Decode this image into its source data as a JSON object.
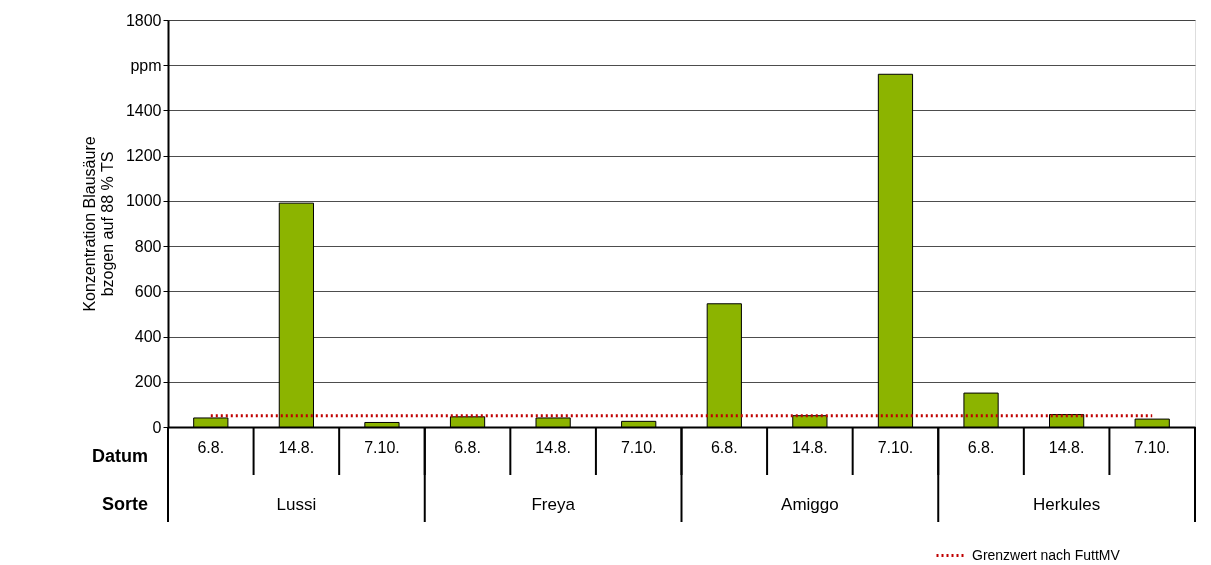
{
  "chart_data": {
    "type": "bar",
    "ylabel": "Konzentration Blausäure\nbzogen auf 88 % TS",
    "categories": [
      "6.8.",
      "14.8.",
      "7.10.",
      "6.8.",
      "14.8.",
      "7.10.",
      "6.8.",
      "14.8.",
      "7.10.",
      "6.8.",
      "14.8.",
      "7.10."
    ],
    "values": [
      40,
      990,
      20,
      45,
      40,
      25,
      545,
      50,
      1560,
      150,
      55,
      35
    ],
    "color": "#8cb400",
    "ylim": [
      0,
      1800
    ],
    "yticks": [
      0,
      200,
      400,
      600,
      800,
      1000,
      1200,
      1400,
      {
        "value": 1600,
        "label": "ppm"
      },
      1800
    ],
    "grid": "y",
    "legend": "bottom right",
    "ref_lines": [
      {
        "axis": "y",
        "value": 50,
        "label": "Grenzwert nach FuttMV",
        "color": "#c00000",
        "line_style": "dotted"
      }
    ],
    "annotations": [
      "Datum",
      "Sorte",
      "Lussi",
      "Freya",
      "Amiggo",
      "Herkules"
    ]
  }
}
